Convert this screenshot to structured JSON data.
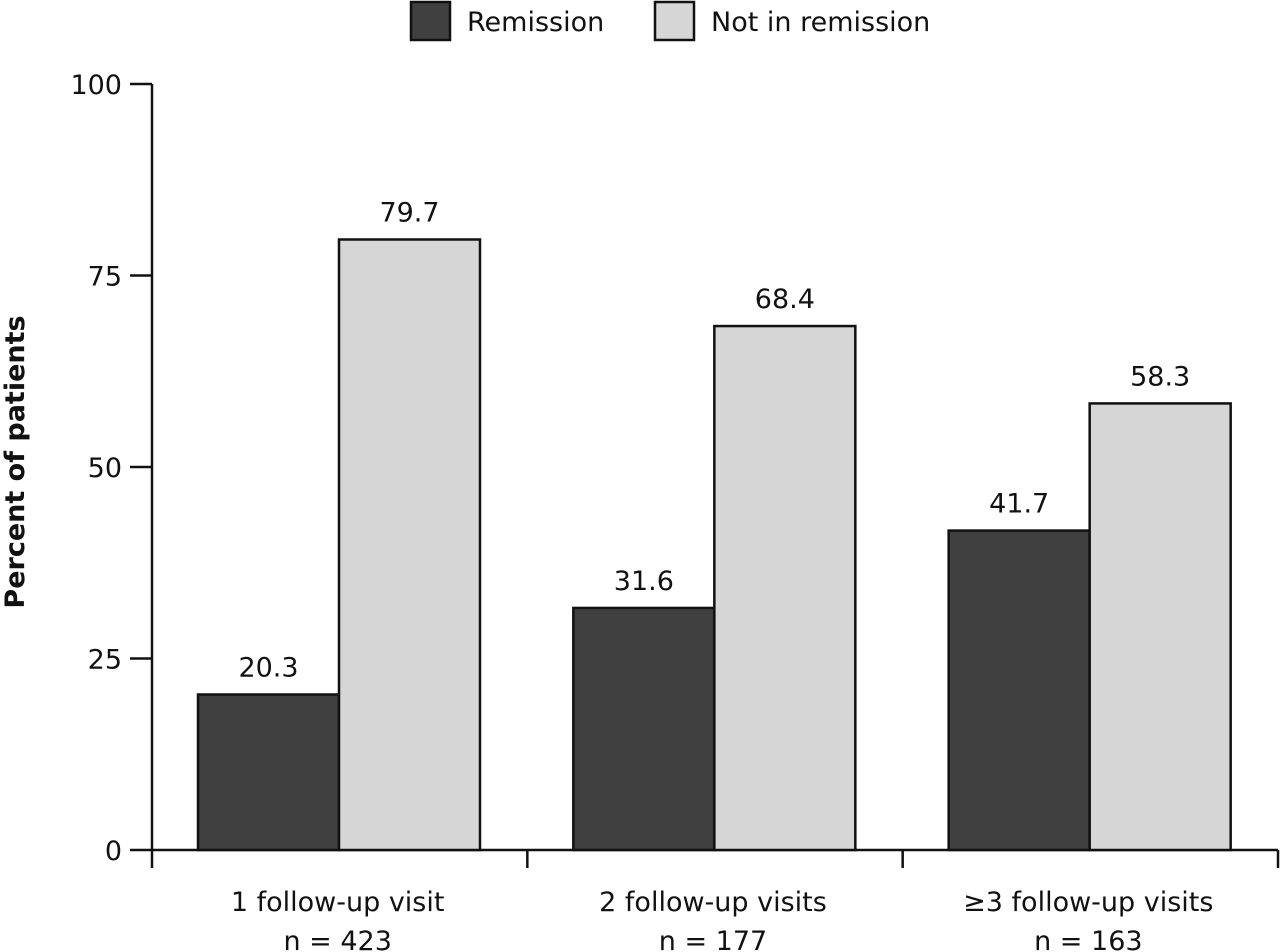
{
  "chart_data": {
    "type": "bar",
    "title": "",
    "xlabel": "",
    "ylabel": "Percent of patients",
    "ylim": [
      0,
      100
    ],
    "yticks": [
      0,
      25,
      50,
      75,
      100
    ],
    "grid": false,
    "legend_position": "top-center",
    "categories": [
      "1 follow-up visit",
      "2 follow-up visits",
      "≥3 follow-up visits"
    ],
    "category_subtitles": [
      "n = 423",
      "n = 177",
      "n = 163"
    ],
    "series": [
      {
        "name": "Remission",
        "color": "#404040",
        "values": [
          20.3,
          31.6,
          41.7
        ]
      },
      {
        "name": "Not in remission",
        "color": "#d6d6d6",
        "values": [
          79.7,
          68.4,
          58.3
        ]
      }
    ]
  }
}
